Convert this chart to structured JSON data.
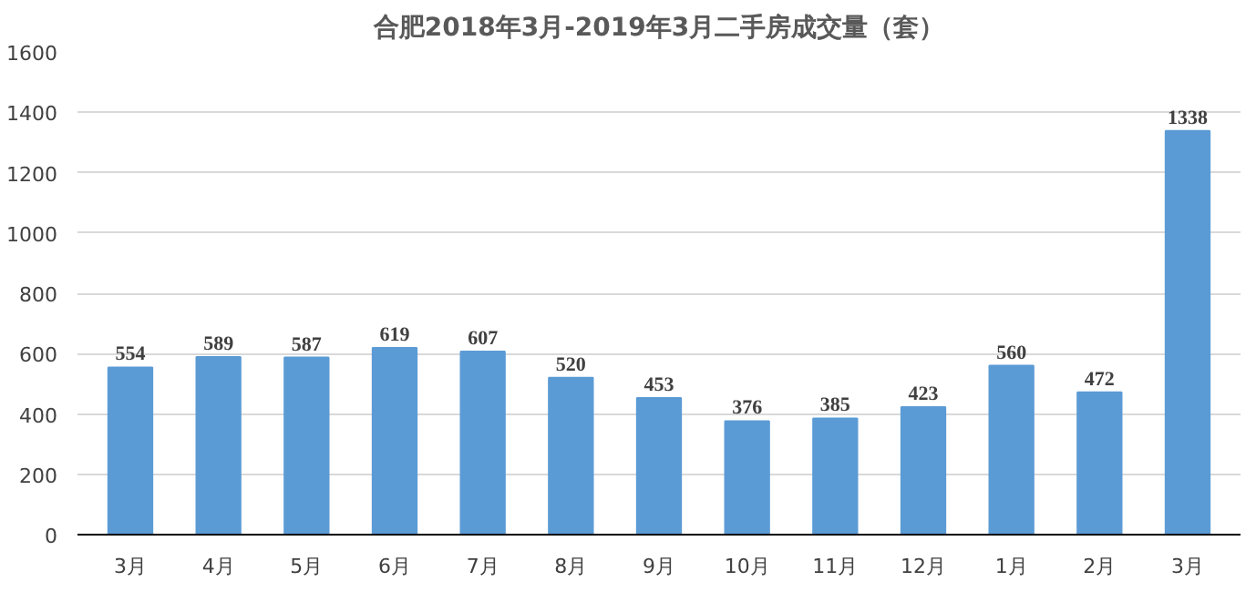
{
  "chart_data": {
    "type": "bar",
    "title": "合肥2018年3月-2019年3月二手房成交量（套）",
    "categories": [
      "3月",
      "4月",
      "5月",
      "6月",
      "7月",
      "8月",
      "9月",
      "10月",
      "11月",
      "12月",
      "1月",
      "2月",
      "3月"
    ],
    "values": [
      554,
      589,
      587,
      619,
      607,
      520,
      453,
      376,
      385,
      423,
      560,
      472,
      1338
    ],
    "color": "#5b9bd5",
    "ylim": [
      0,
      1600
    ],
    "yticks": [
      0,
      200,
      400,
      600,
      800,
      1000,
      1200,
      1400,
      1600
    ],
    "grid": "y",
    "data_labels": true
  }
}
